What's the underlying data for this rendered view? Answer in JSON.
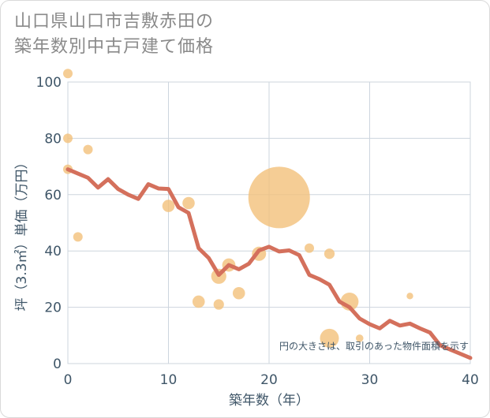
{
  "title_line1": "山口県山口市吉敷赤田の",
  "title_line2": "築年数別中古戸建て価格",
  "colors": {
    "line": "#d4705c",
    "bubble": "#f2c07a",
    "grid": "#cdd5de",
    "axis_text": "#3f5668"
  },
  "chart_data": {
    "type": "scatter",
    "xlabel": "築年数（年）",
    "ylabel": "坪（3.3㎡）単価（万円）",
    "xlim": [
      0,
      40
    ],
    "ylim": [
      0,
      100
    ],
    "xticks": [
      0,
      10,
      20,
      30,
      40
    ],
    "yticks": [
      0,
      20,
      40,
      60,
      80,
      100
    ],
    "note": "円の大きさは、取引のあった物件面積を示す",
    "bubbles": [
      {
        "x": 0,
        "y": 103,
        "size": 1
      },
      {
        "x": 0,
        "y": 80,
        "size": 1
      },
      {
        "x": 0,
        "y": 69,
        "size": 1
      },
      {
        "x": 1,
        "y": 45,
        "size": 1
      },
      {
        "x": 2,
        "y": 76,
        "size": 1
      },
      {
        "x": 10,
        "y": 56,
        "size": 1.3
      },
      {
        "x": 12,
        "y": 57,
        "size": 1.3
      },
      {
        "x": 13,
        "y": 22,
        "size": 1.3
      },
      {
        "x": 15,
        "y": 31,
        "size": 1.6
      },
      {
        "x": 15,
        "y": 21,
        "size": 1.1
      },
      {
        "x": 16,
        "y": 35,
        "size": 1.4
      },
      {
        "x": 17,
        "y": 25,
        "size": 1.3
      },
      {
        "x": 19,
        "y": 39,
        "size": 1.5
      },
      {
        "x": 21,
        "y": 59,
        "size": 6.5
      },
      {
        "x": 24,
        "y": 41,
        "size": 1
      },
      {
        "x": 26,
        "y": 39,
        "size": 1.1
      },
      {
        "x": 26,
        "y": 9,
        "size": 2
      },
      {
        "x": 28,
        "y": 22,
        "size": 1.9
      },
      {
        "x": 29,
        "y": 9,
        "size": 0.8
      },
      {
        "x": 34,
        "y": 24,
        "size": 0.7
      }
    ],
    "trend": {
      "x": [
        0,
        1,
        2,
        3,
        4,
        5,
        6,
        7,
        8,
        9,
        10,
        11,
        12,
        13,
        14,
        15,
        16,
        17,
        18,
        19,
        20,
        21,
        22,
        23,
        24,
        25,
        26,
        27,
        28,
        29,
        30,
        31,
        32,
        33,
        34,
        35,
        36,
        37,
        38,
        39,
        40
      ],
      "y": [
        69,
        67.5,
        66,
        62.5,
        65.5,
        62,
        60,
        58.5,
        63.7,
        62.2,
        62,
        55.5,
        53.5,
        41,
        37.5,
        31.5,
        35,
        33.5,
        35.5,
        40.2,
        41.5,
        39.8,
        40.2,
        38.5,
        31.5,
        30,
        28,
        22,
        20,
        16,
        14,
        12.5,
        15.2,
        13.5,
        14.2,
        12.5,
        11,
        6.5,
        5,
        3.5,
        2
      ]
    }
  }
}
